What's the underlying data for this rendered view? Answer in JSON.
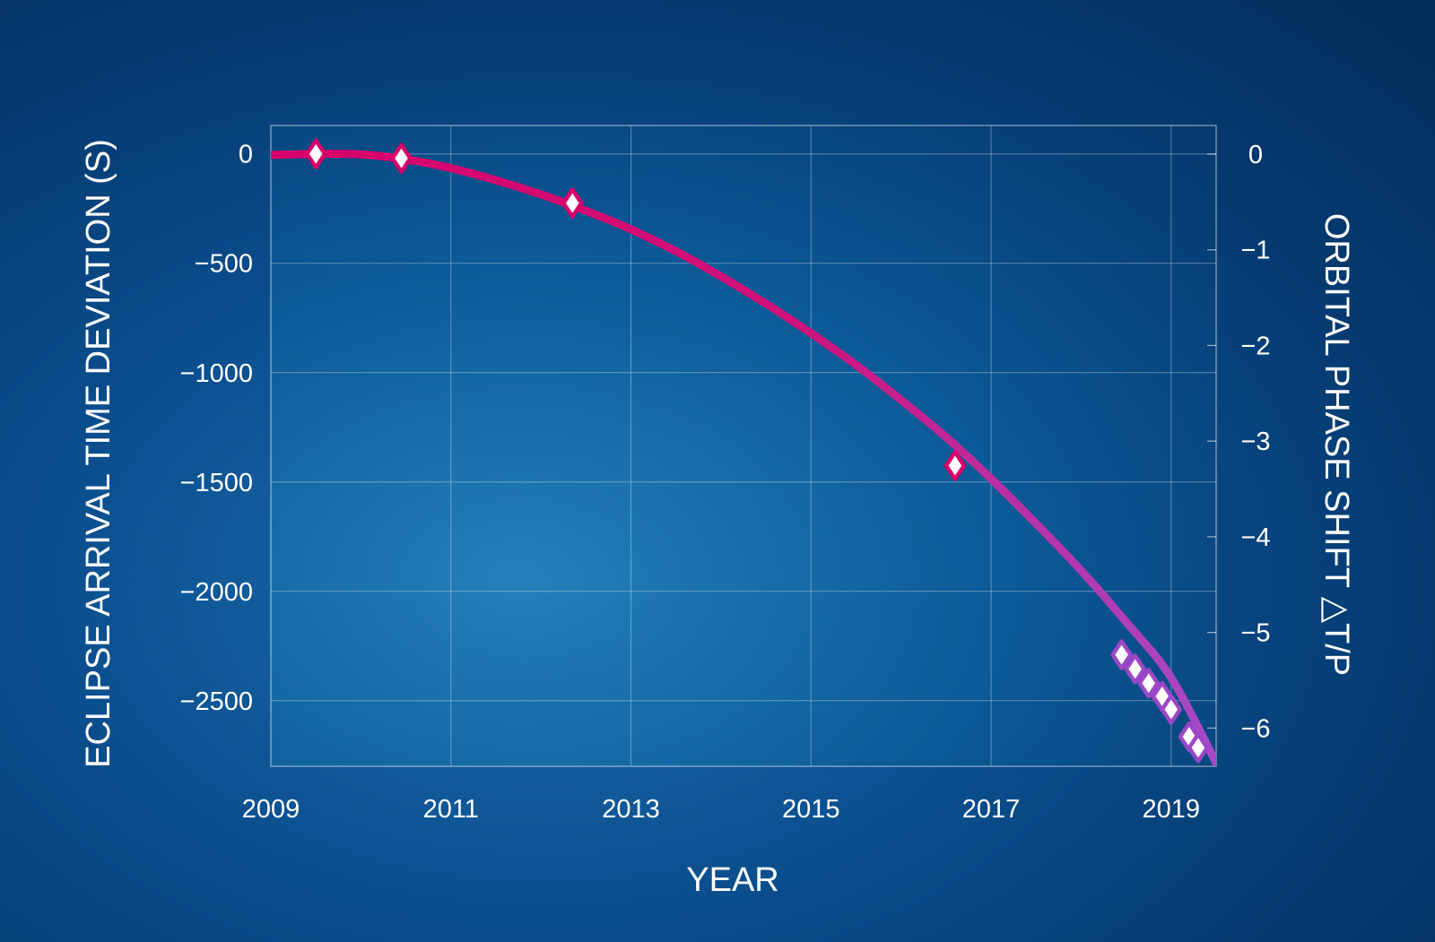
{
  "chart_data": {
    "type": "line",
    "xlabel": "YEAR",
    "ylabel": "ECLIPSE ARRIVAL TIME DEVIATION (S)",
    "y2label": "ORBITAL PHASE SHIFT △T/P",
    "xlim": [
      2009,
      2019.5
    ],
    "ylim": [
      -2800,
      130
    ],
    "y2lim": [
      -6.4,
      0.3
    ],
    "x_ticks": [
      2009,
      2011,
      2013,
      2015,
      2017,
      2019
    ],
    "x_tick_labels": [
      "2009",
      "2011",
      "2013",
      "2015",
      "2017",
      "2019"
    ],
    "y_ticks": [
      0,
      -500,
      -1000,
      -1500,
      -2000,
      -2500
    ],
    "y_tick_labels": [
      "0",
      "−500",
      "−1000",
      "−1500",
      "−2000",
      "−2500"
    ],
    "y2_ticks": [
      0,
      -1,
      -2,
      -3,
      -4,
      -5,
      -6
    ],
    "y2_tick_labels": [
      "0",
      "−1",
      "−2",
      "−3",
      "−4",
      "−5",
      "−6"
    ],
    "grid": true,
    "curve": {
      "x": [
        2009.0,
        2009.5,
        2010.0,
        2010.5,
        2011.0,
        2011.5,
        2012.0,
        2012.5,
        2013.0,
        2013.5,
        2014.0,
        2014.5,
        2015.0,
        2015.5,
        2016.0,
        2016.5,
        2017.0,
        2017.5,
        2018.0,
        2018.5,
        2019.0,
        2019.5
      ],
      "y": [
        -5,
        0,
        -2,
        -25,
        -65,
        -120,
        -185,
        -260,
        -345,
        -445,
        -560,
        -685,
        -820,
        -965,
        -1125,
        -1295,
        -1485,
        -1690,
        -1905,
        -2140,
        -2395,
        -2785
      ],
      "color_start": "#d8006a",
      "color_end": "#a64ac9"
    },
    "observations": {
      "x": [
        2009.5,
        2010.45,
        2012.35,
        2016.6,
        2018.45,
        2018.6,
        2018.75,
        2018.9,
        2019.0,
        2019.2,
        2019.3
      ],
      "y": [
        0,
        -20,
        -225,
        -1425,
        -2290,
        -2355,
        -2420,
        -2480,
        -2540,
        -2665,
        -2715
      ]
    },
    "colors": {
      "marker_fill": "#ffffff",
      "marker_stroke_early": "#d8006a",
      "marker_stroke_late": "#9b47c7",
      "plot_overlay": "#0b6aa3"
    }
  }
}
